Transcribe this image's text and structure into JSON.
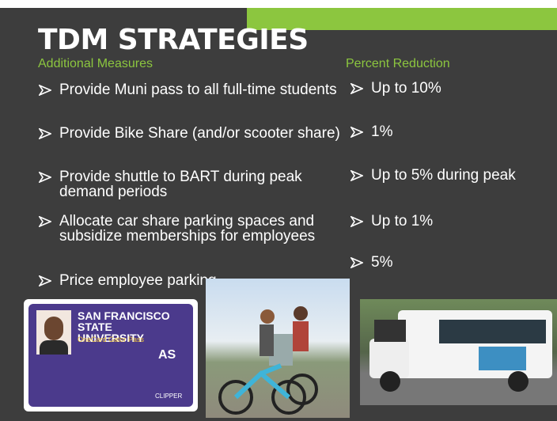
{
  "header": {
    "title": "TDM STRATEGIES",
    "measures_heading": "Additional Measures",
    "reduction_heading": "Percent Reduction"
  },
  "measures": [
    "Provide Muni pass to all full-time students",
    "Provide Bike Share (and/or scooter share)",
    "Provide shuttle to BART during peak demand periods",
    "Allocate car share parking spaces and subsidize memberships for employees",
    "Price employee parking"
  ],
  "reductions": [
    "Up to 10%",
    "1%",
    "Up to 5% during peak",
    "Up to 1%",
    "5%"
  ],
  "card": {
    "university": "SAN FRANCISCO STATE UNIVERSITY",
    "pass": "OneCard Gator Pass",
    "as": "AS",
    "clipper": "CLIPPER"
  }
}
